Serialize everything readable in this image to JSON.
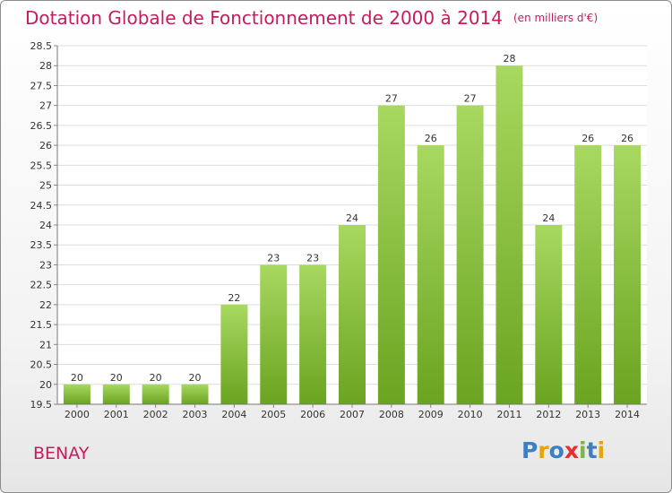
{
  "title": "Dotation Globale de Fonctionnement de 2000 à 2014",
  "subtitle": "(en milliers d'€)",
  "commune": "BENAY",
  "logo": {
    "text": "Proxiti",
    "letters": [
      {
        "ch": "P",
        "color": "#3d7fc1"
      },
      {
        "ch": "r",
        "color": "#e8a400"
      },
      {
        "ch": "o",
        "color": "#3d7fc1"
      },
      {
        "ch": "x",
        "color": "#e53030"
      },
      {
        "ch": "i",
        "color": "#7ab648"
      },
      {
        "ch": "t",
        "color": "#3d7fc1"
      },
      {
        "ch": "i",
        "color": "#e8a400"
      }
    ]
  },
  "colors": {
    "title": "#c41c5c",
    "bar_light": "#a8d860",
    "bar_dark": "#6aa420",
    "grid": "#dddddd"
  },
  "chart_data": {
    "type": "bar",
    "categories": [
      "2000",
      "2001",
      "2002",
      "2003",
      "2004",
      "2005",
      "2006",
      "2007",
      "2008",
      "2009",
      "2010",
      "2011",
      "2012",
      "2013",
      "2014"
    ],
    "values": [
      20,
      20,
      20,
      20,
      22,
      23,
      23,
      24,
      27,
      26,
      27,
      28,
      24,
      26,
      26
    ],
    "value_labels": [
      "20",
      "20",
      "20",
      "20",
      "22",
      "23",
      "23",
      "24",
      "27",
      "26",
      "27",
      "28",
      "24",
      "26",
      "26"
    ],
    "ylim": [
      19.5,
      28.5
    ],
    "yticks": [
      19.5,
      20,
      20.5,
      21,
      21.5,
      22,
      22.5,
      23,
      23.5,
      24,
      24.5,
      25,
      25.5,
      26,
      26.5,
      27,
      27.5,
      28,
      28.5
    ],
    "ytick_labels": [
      "19.5",
      "20",
      "20.5",
      "21",
      "21.5",
      "22",
      "22.5",
      "23",
      "23.5",
      "24",
      "24.5",
      "25",
      "25.5",
      "26",
      "26.5",
      "27",
      "27.5",
      "28",
      "28.5"
    ],
    "grid": true
  }
}
